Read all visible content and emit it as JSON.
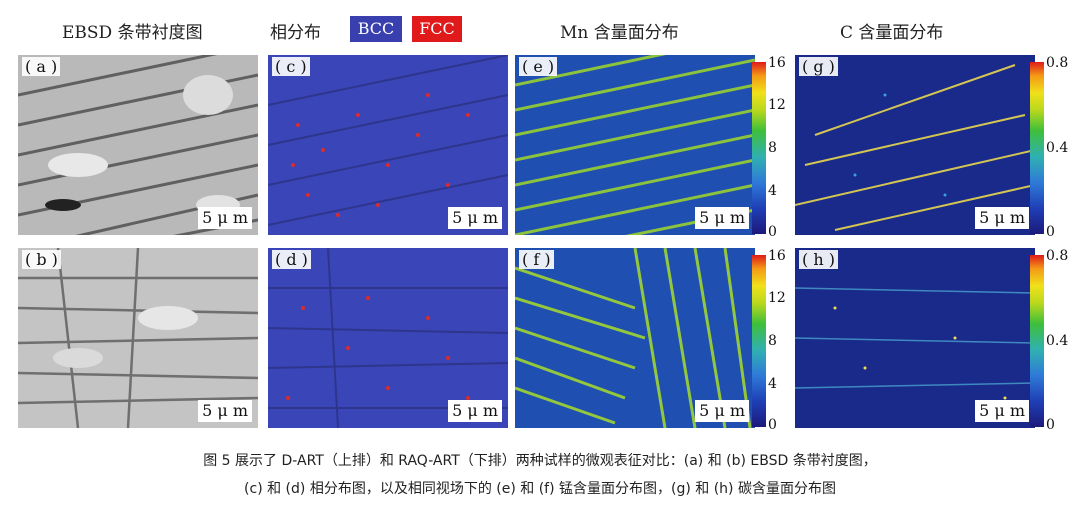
{
  "headers": {
    "ebsd": "EBSD 条带衬度图",
    "phase": "相分布",
    "mn": "Mn 含量面分布",
    "c": "C 含量面分布"
  },
  "badges": {
    "bcc": {
      "label": "BCC",
      "color": "#3a3fb0"
    },
    "fcc": {
      "label": "FCC",
      "color": "#e01a1a"
    }
  },
  "panels": {
    "a": "( a )",
    "b": "( b )",
    "c": "( c )",
    "d": "( d )",
    "e": "( e )",
    "f": "( f )",
    "g": "( g )",
    "h": "( h )"
  },
  "scale_label": "5 μ m",
  "colorbars": {
    "mn": {
      "max": "16",
      "t12": "12",
      "t8": "8",
      "t4": "4",
      "min": "0"
    },
    "c": {
      "max": "0.8",
      "mid": "0.4",
      "min": "0"
    }
  },
  "caption": {
    "line1": "图 5 展示了 D-ART（上排）和 RAQ-ART（下排）两种试样的微观表征对比：(a) 和 (b) EBSD 条带衬度图，",
    "line2": "(c) 和 (d) 相分布图，以及相同视场下的 (e) 和 (f) 锰含量面分布图，(g) 和 (h) 碳含量面分布图"
  }
}
